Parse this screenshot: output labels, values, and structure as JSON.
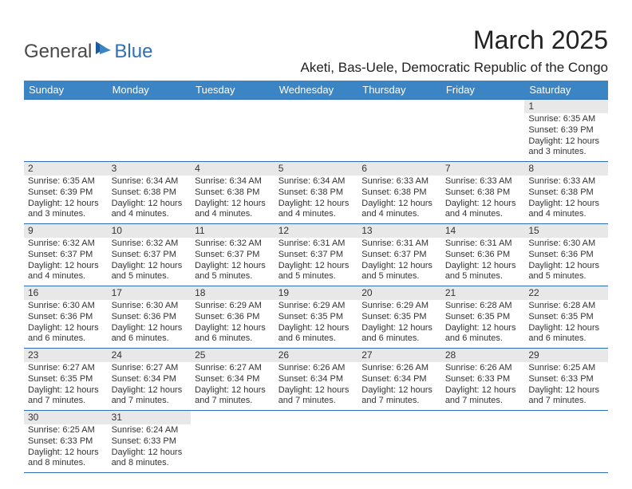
{
  "logo": {
    "general": "General",
    "blue": "Blue"
  },
  "title": "March 2025",
  "location": "Aketi, Bas-Uele, Democratic Republic of the Congo",
  "colors": {
    "header_bg": "#3b85c5",
    "header_text": "#ffffff",
    "daynum_bg": "#e8e8e8",
    "border": "#2e6fb5",
    "text": "#333333",
    "logo_blue": "#2e6fb5"
  },
  "dayHeaders": [
    "Sunday",
    "Monday",
    "Tuesday",
    "Wednesday",
    "Thursday",
    "Friday",
    "Saturday"
  ],
  "weeks": [
    [
      null,
      null,
      null,
      null,
      null,
      null,
      {
        "n": "1",
        "sr": "Sunrise: 6:35 AM",
        "ss": "Sunset: 6:39 PM",
        "dl": "Daylight: 12 hours and 3 minutes."
      }
    ],
    [
      {
        "n": "2",
        "sr": "Sunrise: 6:35 AM",
        "ss": "Sunset: 6:39 PM",
        "dl": "Daylight: 12 hours and 3 minutes."
      },
      {
        "n": "3",
        "sr": "Sunrise: 6:34 AM",
        "ss": "Sunset: 6:38 PM",
        "dl": "Daylight: 12 hours and 4 minutes."
      },
      {
        "n": "4",
        "sr": "Sunrise: 6:34 AM",
        "ss": "Sunset: 6:38 PM",
        "dl": "Daylight: 12 hours and 4 minutes."
      },
      {
        "n": "5",
        "sr": "Sunrise: 6:34 AM",
        "ss": "Sunset: 6:38 PM",
        "dl": "Daylight: 12 hours and 4 minutes."
      },
      {
        "n": "6",
        "sr": "Sunrise: 6:33 AM",
        "ss": "Sunset: 6:38 PM",
        "dl": "Daylight: 12 hours and 4 minutes."
      },
      {
        "n": "7",
        "sr": "Sunrise: 6:33 AM",
        "ss": "Sunset: 6:38 PM",
        "dl": "Daylight: 12 hours and 4 minutes."
      },
      {
        "n": "8",
        "sr": "Sunrise: 6:33 AM",
        "ss": "Sunset: 6:38 PM",
        "dl": "Daylight: 12 hours and 4 minutes."
      }
    ],
    [
      {
        "n": "9",
        "sr": "Sunrise: 6:32 AM",
        "ss": "Sunset: 6:37 PM",
        "dl": "Daylight: 12 hours and 4 minutes."
      },
      {
        "n": "10",
        "sr": "Sunrise: 6:32 AM",
        "ss": "Sunset: 6:37 PM",
        "dl": "Daylight: 12 hours and 5 minutes."
      },
      {
        "n": "11",
        "sr": "Sunrise: 6:32 AM",
        "ss": "Sunset: 6:37 PM",
        "dl": "Daylight: 12 hours and 5 minutes."
      },
      {
        "n": "12",
        "sr": "Sunrise: 6:31 AM",
        "ss": "Sunset: 6:37 PM",
        "dl": "Daylight: 12 hours and 5 minutes."
      },
      {
        "n": "13",
        "sr": "Sunrise: 6:31 AM",
        "ss": "Sunset: 6:37 PM",
        "dl": "Daylight: 12 hours and 5 minutes."
      },
      {
        "n": "14",
        "sr": "Sunrise: 6:31 AM",
        "ss": "Sunset: 6:36 PM",
        "dl": "Daylight: 12 hours and 5 minutes."
      },
      {
        "n": "15",
        "sr": "Sunrise: 6:30 AM",
        "ss": "Sunset: 6:36 PM",
        "dl": "Daylight: 12 hours and 5 minutes."
      }
    ],
    [
      {
        "n": "16",
        "sr": "Sunrise: 6:30 AM",
        "ss": "Sunset: 6:36 PM",
        "dl": "Daylight: 12 hours and 6 minutes."
      },
      {
        "n": "17",
        "sr": "Sunrise: 6:30 AM",
        "ss": "Sunset: 6:36 PM",
        "dl": "Daylight: 12 hours and 6 minutes."
      },
      {
        "n": "18",
        "sr": "Sunrise: 6:29 AM",
        "ss": "Sunset: 6:36 PM",
        "dl": "Daylight: 12 hours and 6 minutes."
      },
      {
        "n": "19",
        "sr": "Sunrise: 6:29 AM",
        "ss": "Sunset: 6:35 PM",
        "dl": "Daylight: 12 hours and 6 minutes."
      },
      {
        "n": "20",
        "sr": "Sunrise: 6:29 AM",
        "ss": "Sunset: 6:35 PM",
        "dl": "Daylight: 12 hours and 6 minutes."
      },
      {
        "n": "21",
        "sr": "Sunrise: 6:28 AM",
        "ss": "Sunset: 6:35 PM",
        "dl": "Daylight: 12 hours and 6 minutes."
      },
      {
        "n": "22",
        "sr": "Sunrise: 6:28 AM",
        "ss": "Sunset: 6:35 PM",
        "dl": "Daylight: 12 hours and 6 minutes."
      }
    ],
    [
      {
        "n": "23",
        "sr": "Sunrise: 6:27 AM",
        "ss": "Sunset: 6:35 PM",
        "dl": "Daylight: 12 hours and 7 minutes."
      },
      {
        "n": "24",
        "sr": "Sunrise: 6:27 AM",
        "ss": "Sunset: 6:34 PM",
        "dl": "Daylight: 12 hours and 7 minutes."
      },
      {
        "n": "25",
        "sr": "Sunrise: 6:27 AM",
        "ss": "Sunset: 6:34 PM",
        "dl": "Daylight: 12 hours and 7 minutes."
      },
      {
        "n": "26",
        "sr": "Sunrise: 6:26 AM",
        "ss": "Sunset: 6:34 PM",
        "dl": "Daylight: 12 hours and 7 minutes."
      },
      {
        "n": "27",
        "sr": "Sunrise: 6:26 AM",
        "ss": "Sunset: 6:34 PM",
        "dl": "Daylight: 12 hours and 7 minutes."
      },
      {
        "n": "28",
        "sr": "Sunrise: 6:26 AM",
        "ss": "Sunset: 6:33 PM",
        "dl": "Daylight: 12 hours and 7 minutes."
      },
      {
        "n": "29",
        "sr": "Sunrise: 6:25 AM",
        "ss": "Sunset: 6:33 PM",
        "dl": "Daylight: 12 hours and 7 minutes."
      }
    ],
    [
      {
        "n": "30",
        "sr": "Sunrise: 6:25 AM",
        "ss": "Sunset: 6:33 PM",
        "dl": "Daylight: 12 hours and 8 minutes."
      },
      {
        "n": "31",
        "sr": "Sunrise: 6:24 AM",
        "ss": "Sunset: 6:33 PM",
        "dl": "Daylight: 12 hours and 8 minutes."
      },
      null,
      null,
      null,
      null,
      null
    ]
  ]
}
